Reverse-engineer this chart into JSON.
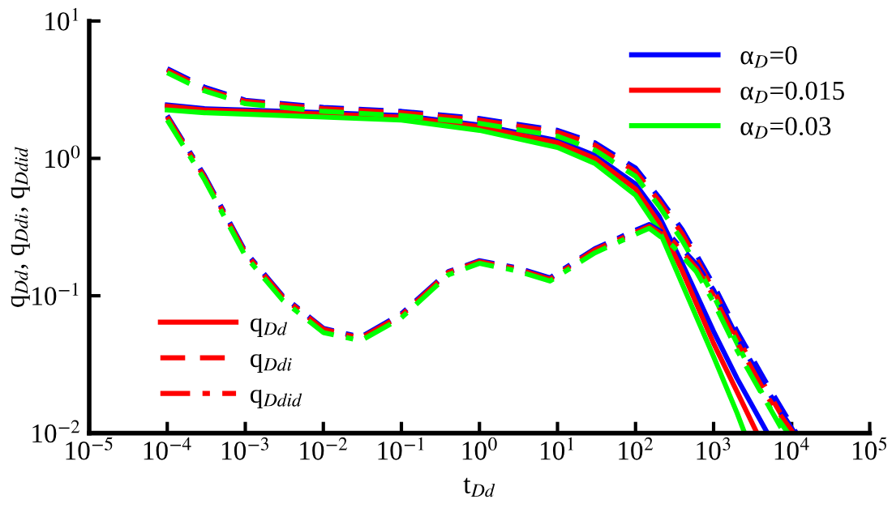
{
  "chart_data": {
    "type": "line",
    "xlabel": "t$_{Dd}$",
    "ylabel": "q$_{Dd}$, q$_{Ddi}$, q$_{Ddid}$",
    "log": "xy",
    "xlim": [
      1e-05,
      100000.0
    ],
    "ylim": [
      0.01,
      10
    ],
    "xticks": [
      {
        "value": 1e-05,
        "label": "10$^{−5}$"
      },
      {
        "value": 0.0001,
        "label": "10$^{−4}$"
      },
      {
        "value": 0.001,
        "label": "10$^{−3}$"
      },
      {
        "value": 0.01,
        "label": "10$^{−2}$"
      },
      {
        "value": 0.1,
        "label": "10$^{−1}$"
      },
      {
        "value": 1,
        "label": "10$^{0}$"
      },
      {
        "value": 10,
        "label": "10$^{1}$"
      },
      {
        "value": 100,
        "label": "10$^{2}$"
      },
      {
        "value": 1000,
        "label": "10$^{3}$"
      },
      {
        "value": 10000,
        "label": "10$^{4}$"
      },
      {
        "value": 100000,
        "label": "10$^{5}$"
      }
    ],
    "yticks": [
      {
        "value": 0.01,
        "label": "10$^{−2}$"
      },
      {
        "value": 0.1,
        "label": "10$^{−1}$"
      },
      {
        "value": 1,
        "label": "10$^{0}$"
      },
      {
        "value": 10,
        "label": "10$^{1}$"
      }
    ],
    "grid": false,
    "legend": "top right",
    "marker": "none",
    "annotations": [
      "q$_{Dd}$",
      "q$_{Ddi}$",
      "q$_{Ddid}$"
    ],
    "series": [
      {
        "name": "α$_{D}$=0",
        "color": "#0000ff",
        "line_style": "solid",
        "x": [
          0.0001,
          0.0003,
          0.001,
          0.01,
          0.1,
          1,
          10,
          30,
          100,
          200,
          400,
          1000,
          2000,
          4900
        ],
        "values": [
          2.45,
          2.3,
          2.25,
          2.15,
          2.05,
          1.75,
          1.35,
          1.05,
          0.65,
          0.38,
          0.17,
          0.055,
          0.025,
          0.01
        ]
      },
      {
        "name": "α$_{D}$=0.015",
        "color": "#ff0000",
        "line_style": "solid",
        "x": [
          0.0001,
          0.0003,
          0.001,
          0.01,
          0.1,
          1,
          10,
          30,
          100,
          200,
          400,
          1000,
          2000,
          3600
        ],
        "values": [
          2.4,
          2.25,
          2.2,
          2.1,
          2.0,
          1.7,
          1.3,
          1.0,
          0.6,
          0.34,
          0.15,
          0.045,
          0.02,
          0.01
        ]
      },
      {
        "name": "α$_{D}$=0.03",
        "color": "#00ff00",
        "line_style": "solid",
        "x": [
          0.0001,
          0.0003,
          0.001,
          0.01,
          0.1,
          1,
          10,
          30,
          100,
          200,
          400,
          1000,
          2000,
          2500
        ],
        "values": [
          2.25,
          2.15,
          2.1,
          2.0,
          1.9,
          1.6,
          1.2,
          0.92,
          0.54,
          0.3,
          0.12,
          0.036,
          0.014,
          0.01
        ]
      },
      {
        "color": "#0000ff",
        "line_style": "dashed",
        "x": [
          0.0001,
          0.0003,
          0.001,
          0.01,
          0.1,
          1,
          10,
          30,
          100,
          200,
          400,
          1000,
          2000,
          5000,
          11500
        ],
        "values": [
          4.5,
          3.3,
          2.65,
          2.35,
          2.2,
          1.95,
          1.6,
          1.3,
          0.85,
          0.52,
          0.3,
          0.12,
          0.055,
          0.022,
          0.01
        ]
      },
      {
        "color": "#ff0000",
        "line_style": "dashed",
        "x": [
          0.0001,
          0.0003,
          0.001,
          0.01,
          0.1,
          1,
          10,
          30,
          100,
          200,
          400,
          1000,
          2000,
          5000,
          10000
        ],
        "values": [
          4.4,
          3.2,
          2.6,
          2.3,
          2.15,
          1.9,
          1.55,
          1.25,
          0.8,
          0.49,
          0.28,
          0.11,
          0.05,
          0.02,
          0.01
        ]
      },
      {
        "color": "#00ff00",
        "line_style": "dashed",
        "x": [
          0.0001,
          0.0003,
          0.001,
          0.01,
          0.1,
          1,
          10,
          30,
          100,
          200,
          400,
          1000,
          2000,
          5000,
          8000
        ],
        "values": [
          4.2,
          3.1,
          2.5,
          2.2,
          2.05,
          1.8,
          1.45,
          1.15,
          0.74,
          0.45,
          0.25,
          0.1,
          0.045,
          0.016,
          0.01
        ]
      },
      {
        "color": "#0000ff",
        "line_style": "dashdot",
        "x": [
          0.0001,
          0.0003,
          0.001,
          0.003,
          0.01,
          0.03,
          0.1,
          0.4,
          1,
          3,
          8,
          30,
          100,
          150,
          300,
          600,
          1000,
          2000,
          5000,
          11000
        ],
        "values": [
          2.05,
          0.75,
          0.21,
          0.1,
          0.058,
          0.05,
          0.074,
          0.15,
          0.18,
          0.16,
          0.135,
          0.22,
          0.3,
          0.33,
          0.26,
          0.17,
          0.11,
          0.05,
          0.02,
          0.01
        ]
      },
      {
        "color": "#ff0000",
        "line_style": "dashdot",
        "x": [
          0.0001,
          0.0003,
          0.001,
          0.003,
          0.01,
          0.03,
          0.1,
          0.4,
          1,
          3,
          8,
          30,
          100,
          150,
          300,
          600,
          1000,
          2000,
          5000,
          10500
        ],
        "values": [
          2.0,
          0.73,
          0.205,
          0.098,
          0.057,
          0.049,
          0.072,
          0.148,
          0.177,
          0.157,
          0.132,
          0.215,
          0.29,
          0.32,
          0.25,
          0.16,
          0.1,
          0.046,
          0.018,
          0.01
        ]
      },
      {
        "color": "#00ff00",
        "line_style": "dashdot",
        "x": [
          0.0001,
          0.0003,
          0.001,
          0.003,
          0.01,
          0.03,
          0.1,
          0.4,
          1,
          3,
          8,
          30,
          100,
          150,
          300,
          600,
          1000,
          2000,
          5000,
          9000
        ],
        "values": [
          1.9,
          0.7,
          0.195,
          0.093,
          0.054,
          0.047,
          0.069,
          0.142,
          0.172,
          0.152,
          0.128,
          0.205,
          0.28,
          0.31,
          0.23,
          0.15,
          0.09,
          0.04,
          0.016,
          0.01
        ]
      }
    ]
  }
}
